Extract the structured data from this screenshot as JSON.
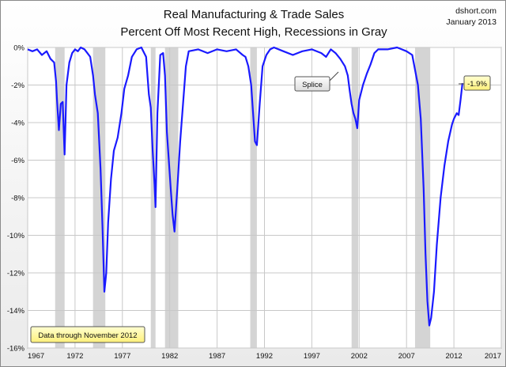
{
  "chart_data": {
    "type": "line",
    "title": "Real Manufacturing & Trade Sales",
    "subtitle": "Percent Off Most Recent High, Recessions in Gray",
    "source": "dshort.com",
    "source_date": "January 2013",
    "xlim": [
      1967,
      2017
    ],
    "ylim": [
      -16,
      0
    ],
    "x_ticks": [
      1967,
      1972,
      1977,
      1982,
      1987,
      1992,
      1997,
      2002,
      2007,
      2012,
      2017
    ],
    "y_ticks": [
      0,
      -2,
      -4,
      -6,
      -8,
      -10,
      -12,
      -14,
      -16
    ],
    "y_tick_suffix": "%",
    "grid": true,
    "series_color": "#1a1aff",
    "recession_color": "#d4d4d4",
    "recessions": [
      [
        1969.9,
        1970.9
      ],
      [
        1973.9,
        1975.2
      ],
      [
        1980.0,
        1980.5
      ],
      [
        1981.5,
        1982.9
      ],
      [
        1990.5,
        1991.2
      ],
      [
        2001.2,
        2001.9
      ],
      [
        2007.9,
        2009.5
      ]
    ],
    "series": [
      {
        "x": [
          1967.0,
          1967.5,
          1968.0,
          1968.5,
          1969.0,
          1969.4,
          1969.8,
          1970.0,
          1970.1,
          1970.3,
          1970.5,
          1970.7,
          1970.9,
          1971.1,
          1971.4,
          1971.7,
          1972.0,
          1972.3,
          1972.6,
          1973.0,
          1973.3,
          1973.6,
          1973.9,
          1974.1,
          1974.4,
          1974.7,
          1974.9,
          1975.1,
          1975.3,
          1975.5,
          1975.8,
          1976.1,
          1976.5,
          1976.9,
          1977.2,
          1977.6,
          1978.0,
          1978.5,
          1979.0,
          1979.5,
          1979.8,
          1980.0,
          1980.2,
          1980.4,
          1980.5,
          1980.7,
          1981.0,
          1981.3,
          1981.5,
          1981.7,
          1981.9,
          1982.1,
          1982.3,
          1982.5,
          1982.8,
          1983.1,
          1983.4,
          1983.7,
          1984.0,
          1985.0,
          1986.0,
          1987.0,
          1988.0,
          1989.0,
          1989.7,
          1990.0,
          1990.3,
          1990.6,
          1990.8,
          1991.0,
          1991.2,
          1991.5,
          1991.8,
          1992.2,
          1992.6,
          1993.0,
          1994.0,
          1995.0,
          1996.0,
          1997.0,
          1998.0,
          1998.5,
          1999.0,
          1999.5,
          2000.0,
          2000.5,
          2000.8,
          2001.0,
          2001.2,
          2001.4,
          2001.6,
          2001.8,
          2002.0,
          2002.4,
          2002.8,
          2003.2,
          2003.6,
          2004.0,
          2005.0,
          2006.0,
          2007.0,
          2007.6,
          2007.9,
          2008.2,
          2008.5,
          2008.8,
          2009.0,
          2009.2,
          2009.4,
          2009.6,
          2009.9,
          2010.2,
          2010.6,
          2011.0,
          2011.4,
          2011.8,
          2012.0,
          2012.3,
          2012.5,
          2012.7,
          2012.9
        ],
        "y": [
          -0.1,
          -0.2,
          -0.1,
          -0.4,
          -0.2,
          -0.6,
          -0.8,
          -1.8,
          -2.8,
          -4.4,
          -3.0,
          -2.9,
          -5.7,
          -2.0,
          -0.8,
          -0.3,
          -0.1,
          -0.2,
          0.0,
          -0.1,
          -0.3,
          -0.5,
          -1.5,
          -2.5,
          -3.5,
          -6.5,
          -9.5,
          -13.0,
          -12.0,
          -9.3,
          -7.0,
          -5.5,
          -4.8,
          -3.5,
          -2.2,
          -1.5,
          -0.5,
          -0.1,
          0.0,
          -0.5,
          -2.5,
          -3.2,
          -5.5,
          -7.3,
          -8.5,
          -3.5,
          -0.4,
          -0.3,
          -1.5,
          -4.5,
          -6.0,
          -7.5,
          -8.9,
          -9.8,
          -7.5,
          -5.0,
          -3.0,
          -1.0,
          -0.2,
          -0.1,
          -0.3,
          -0.1,
          -0.2,
          -0.1,
          -0.4,
          -0.5,
          -1.0,
          -2.0,
          -3.5,
          -5.0,
          -5.2,
          -3.0,
          -1.0,
          -0.4,
          -0.1,
          0.0,
          -0.2,
          -0.4,
          -0.2,
          -0.1,
          -0.3,
          -0.5,
          -0.1,
          -0.3,
          -0.6,
          -1.0,
          -1.5,
          -2.3,
          -3.0,
          -3.5,
          -3.8,
          -4.3,
          -2.8,
          -2.0,
          -1.4,
          -0.9,
          -0.3,
          -0.1,
          -0.1,
          0.0,
          -0.2,
          -0.4,
          -1.2,
          -2.0,
          -3.8,
          -7.5,
          -11.0,
          -13.5,
          -14.8,
          -14.4,
          -13.0,
          -10.5,
          -8.0,
          -6.3,
          -5.0,
          -4.1,
          -3.8,
          -3.5,
          -3.6,
          -2.8,
          -1.9
        ]
      }
    ],
    "annotations": [
      {
        "text": "Splice"
      },
      {
        "text": "-1.9%"
      },
      {
        "text": "Data through November 2012"
      }
    ]
  }
}
